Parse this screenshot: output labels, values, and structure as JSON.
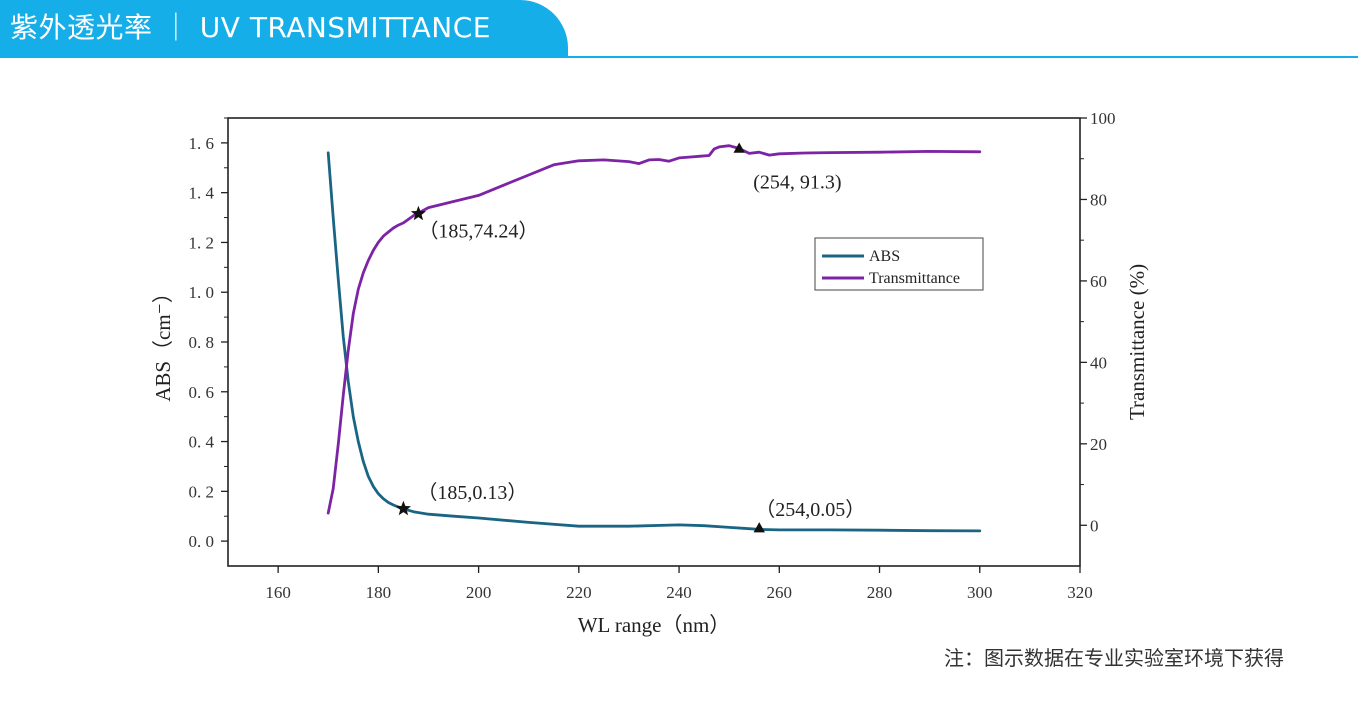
{
  "header": {
    "title": "紫外透光率 ｜ UV TRANSMITTANCE",
    "accent_color": "#15aee8"
  },
  "footnote": "注：图示数据在专业实验室环境下获得",
  "chart_data": {
    "type": "line",
    "title": "",
    "xlabel": "WL range（nm）",
    "ylabel": "ABS（cm⁻）",
    "y2label": "Transmittance (%)",
    "xlim": [
      150,
      320
    ],
    "x_ticks": [
      160,
      180,
      200,
      220,
      240,
      260,
      280,
      300,
      320
    ],
    "ylim": [
      -0.1,
      1.7
    ],
    "y_ticks": [
      0.0,
      0.2,
      0.4,
      0.6,
      0.8,
      1.0,
      1.2,
      1.4,
      1.6
    ],
    "y2lim": [
      -10,
      100
    ],
    "y2_ticks": [
      0,
      20,
      40,
      60,
      80,
      100
    ],
    "grid": false,
    "legend": "upper-right-inside",
    "series": [
      {
        "name": "ABS",
        "axis": "left",
        "color": "#1b6584",
        "x": [
          170,
          171,
          172,
          173,
          174,
          175,
          176,
          177,
          178,
          179,
          180,
          181,
          182,
          183,
          184,
          185,
          187,
          190,
          195,
          200,
          210,
          220,
          230,
          240,
          245,
          250,
          254,
          256,
          260,
          270,
          280,
          290,
          300
        ],
        "values": [
          1.56,
          1.3,
          1.05,
          0.82,
          0.64,
          0.5,
          0.4,
          0.32,
          0.26,
          0.22,
          0.19,
          0.17,
          0.155,
          0.145,
          0.137,
          0.13,
          0.118,
          0.108,
          0.1,
          0.093,
          0.075,
          0.06,
          0.06,
          0.065,
          0.062,
          0.055,
          0.05,
          0.047,
          0.045,
          0.045,
          0.044,
          0.042,
          0.041
        ]
      },
      {
        "name": "Transmittance",
        "axis": "right",
        "color": "#7d24a6",
        "x": [
          170,
          171,
          172,
          173,
          174,
          175,
          176,
          177,
          178,
          179,
          180,
          181,
          182,
          183,
          184,
          185,
          187,
          190,
          195,
          200,
          205,
          210,
          215,
          220,
          225,
          230,
          232,
          234,
          236,
          238,
          240,
          242,
          244,
          246,
          247,
          248,
          250,
          252,
          254,
          256,
          258,
          260,
          265,
          270,
          280,
          290,
          300
        ],
        "values": [
          3,
          9,
          20,
          32,
          43,
          52,
          58,
          62,
          65,
          67.5,
          69.5,
          71,
          72,
          73,
          73.7,
          74.24,
          76,
          78,
          79.5,
          81,
          83.5,
          86,
          88.5,
          89.5,
          89.7,
          89.3,
          88.8,
          89.7,
          89.8,
          89.4,
          90.2,
          90.4,
          90.6,
          90.8,
          92.4,
          92.9,
          93.2,
          92.5,
          91.3,
          91.6,
          90.9,
          91.2,
          91.4,
          91.5,
          91.6,
          91.8,
          91.7
        ]
      }
    ],
    "annotations": [
      {
        "text": "(254, 91.3)",
        "series": "Transmittance",
        "x": 252,
        "y": 92.5,
        "marker": "triangle"
      },
      {
        "text": "（185,74.24）",
        "series": "Transmittance",
        "x": 188,
        "y": 76.5,
        "marker": "star"
      },
      {
        "text": "（185,0.13）",
        "series": "ABS",
        "x": 185,
        "y": 0.13,
        "marker": "star"
      },
      {
        "text": "（254,0.05）",
        "series": "ABS",
        "x": 256,
        "y": 0.052,
        "marker": "triangle"
      }
    ]
  }
}
